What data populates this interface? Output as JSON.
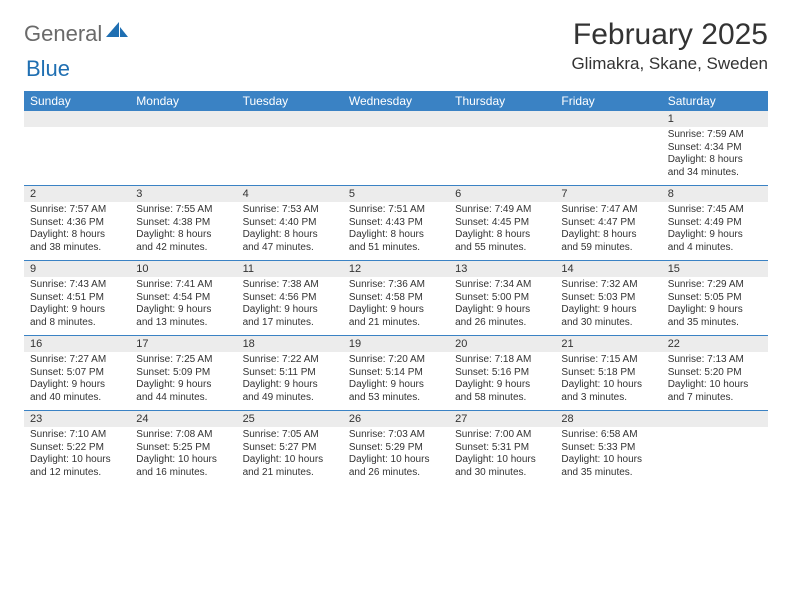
{
  "brand": {
    "word1": "General",
    "word2": "Blue"
  },
  "title": "February 2025",
  "location": "Glimakra, Skane, Sweden",
  "colors": {
    "header_bg": "#3a82c4",
    "header_text": "#ffffff",
    "daynum_bg": "#ececec",
    "rule": "#3a82c4",
    "logo_gray": "#6a6a6a",
    "logo_blue": "#1f6fb2",
    "text": "#333333",
    "page_bg": "#ffffff"
  },
  "typography": {
    "title_fontsize": 30,
    "location_fontsize": 17,
    "dow_fontsize": 12,
    "daynum_fontsize": 11,
    "body_fontsize": 10,
    "logo_fontsize": 22
  },
  "grid": {
    "columns": 7,
    "rows": 5,
    "start_day_index": 6
  },
  "days_of_week": [
    "Sunday",
    "Monday",
    "Tuesday",
    "Wednesday",
    "Thursday",
    "Friday",
    "Saturday"
  ],
  "days": [
    {
      "n": 1,
      "sunrise": "7:59 AM",
      "sunset": "4:34 PM",
      "daylight": "8 hours and 34 minutes."
    },
    {
      "n": 2,
      "sunrise": "7:57 AM",
      "sunset": "4:36 PM",
      "daylight": "8 hours and 38 minutes."
    },
    {
      "n": 3,
      "sunrise": "7:55 AM",
      "sunset": "4:38 PM",
      "daylight": "8 hours and 42 minutes."
    },
    {
      "n": 4,
      "sunrise": "7:53 AM",
      "sunset": "4:40 PM",
      "daylight": "8 hours and 47 minutes."
    },
    {
      "n": 5,
      "sunrise": "7:51 AM",
      "sunset": "4:43 PM",
      "daylight": "8 hours and 51 minutes."
    },
    {
      "n": 6,
      "sunrise": "7:49 AM",
      "sunset": "4:45 PM",
      "daylight": "8 hours and 55 minutes."
    },
    {
      "n": 7,
      "sunrise": "7:47 AM",
      "sunset": "4:47 PM",
      "daylight": "8 hours and 59 minutes."
    },
    {
      "n": 8,
      "sunrise": "7:45 AM",
      "sunset": "4:49 PM",
      "daylight": "9 hours and 4 minutes."
    },
    {
      "n": 9,
      "sunrise": "7:43 AM",
      "sunset": "4:51 PM",
      "daylight": "9 hours and 8 minutes."
    },
    {
      "n": 10,
      "sunrise": "7:41 AM",
      "sunset": "4:54 PM",
      "daylight": "9 hours and 13 minutes."
    },
    {
      "n": 11,
      "sunrise": "7:38 AM",
      "sunset": "4:56 PM",
      "daylight": "9 hours and 17 minutes."
    },
    {
      "n": 12,
      "sunrise": "7:36 AM",
      "sunset": "4:58 PM",
      "daylight": "9 hours and 21 minutes."
    },
    {
      "n": 13,
      "sunrise": "7:34 AM",
      "sunset": "5:00 PM",
      "daylight": "9 hours and 26 minutes."
    },
    {
      "n": 14,
      "sunrise": "7:32 AM",
      "sunset": "5:03 PM",
      "daylight": "9 hours and 30 minutes."
    },
    {
      "n": 15,
      "sunrise": "7:29 AM",
      "sunset": "5:05 PM",
      "daylight": "9 hours and 35 minutes."
    },
    {
      "n": 16,
      "sunrise": "7:27 AM",
      "sunset": "5:07 PM",
      "daylight": "9 hours and 40 minutes."
    },
    {
      "n": 17,
      "sunrise": "7:25 AM",
      "sunset": "5:09 PM",
      "daylight": "9 hours and 44 minutes."
    },
    {
      "n": 18,
      "sunrise": "7:22 AM",
      "sunset": "5:11 PM",
      "daylight": "9 hours and 49 minutes."
    },
    {
      "n": 19,
      "sunrise": "7:20 AM",
      "sunset": "5:14 PM",
      "daylight": "9 hours and 53 minutes."
    },
    {
      "n": 20,
      "sunrise": "7:18 AM",
      "sunset": "5:16 PM",
      "daylight": "9 hours and 58 minutes."
    },
    {
      "n": 21,
      "sunrise": "7:15 AM",
      "sunset": "5:18 PM",
      "daylight": "10 hours and 3 minutes."
    },
    {
      "n": 22,
      "sunrise": "7:13 AM",
      "sunset": "5:20 PM",
      "daylight": "10 hours and 7 minutes."
    },
    {
      "n": 23,
      "sunrise": "7:10 AM",
      "sunset": "5:22 PM",
      "daylight": "10 hours and 12 minutes."
    },
    {
      "n": 24,
      "sunrise": "7:08 AM",
      "sunset": "5:25 PM",
      "daylight": "10 hours and 16 minutes."
    },
    {
      "n": 25,
      "sunrise": "7:05 AM",
      "sunset": "5:27 PM",
      "daylight": "10 hours and 21 minutes."
    },
    {
      "n": 26,
      "sunrise": "7:03 AM",
      "sunset": "5:29 PM",
      "daylight": "10 hours and 26 minutes."
    },
    {
      "n": 27,
      "sunrise": "7:00 AM",
      "sunset": "5:31 PM",
      "daylight": "10 hours and 30 minutes."
    },
    {
      "n": 28,
      "sunrise": "6:58 AM",
      "sunset": "5:33 PM",
      "daylight": "10 hours and 35 minutes."
    }
  ],
  "labels": {
    "sunrise": "Sunrise:",
    "sunset": "Sunset:",
    "daylight": "Daylight:"
  }
}
